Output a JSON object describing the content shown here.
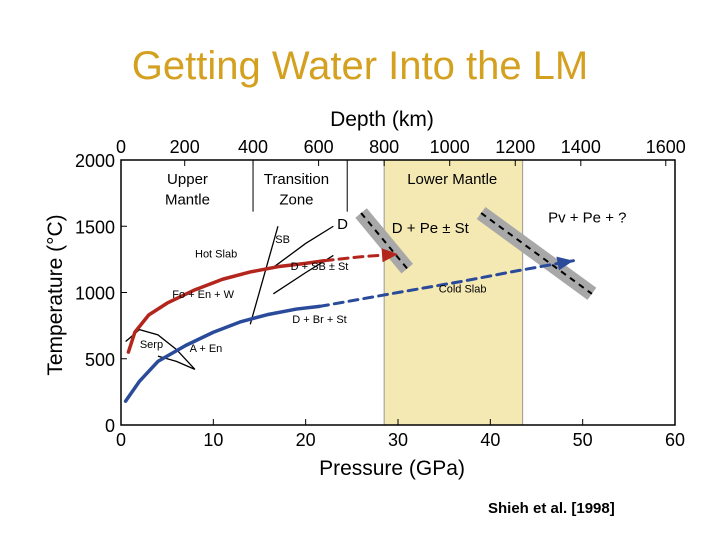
{
  "slide": {
    "title": "Getting Water Into the LM",
    "citation": "Shieh et al. [1998]"
  },
  "colors": {
    "title": "#D4A020",
    "hot_slab": "#B3261E",
    "cold_slab": "#2A4A9A",
    "lower_mantle_band": "#F5E9B3",
    "gray_band": "#A8A8A8"
  },
  "chart_data": {
    "type": "line",
    "title": "",
    "xlabel": "Pressure (GPa)",
    "ylabel": "Temperature (°C)",
    "top_axis_label": "Depth (km)",
    "xlim": [
      0,
      60
    ],
    "ylim": [
      0,
      2000
    ],
    "x_ticks": [
      0,
      10,
      20,
      30,
      40,
      50,
      60
    ],
    "y_ticks": [
      0,
      500,
      1000,
      1500,
      2000
    ],
    "top_ticks_km": [
      0,
      200,
      400,
      600,
      800,
      1000,
      1200,
      1400,
      1600
    ],
    "top_ticks_gpa": [
      0,
      6.9,
      14.3,
      21.4,
      28.5,
      35.6,
      42.7,
      49.8,
      59.0
    ],
    "regions": [
      {
        "label": "Upper Mantle",
        "x_range": [
          0,
          14.3
        ]
      },
      {
        "label": "Transition Zone",
        "x_range": [
          14.3,
          24.5
        ]
      },
      {
        "label": "Lower Mantle",
        "x_range": [
          24.5,
          60
        ]
      }
    ],
    "region_dividers": [
      14.3,
      24.5
    ],
    "highlight_band": {
      "x_range": [
        28.5,
        43.5
      ]
    },
    "series": [
      {
        "name": "Hot Slab",
        "style": "solid",
        "points": [
          [
            0.8,
            550
          ],
          [
            1.5,
            700
          ],
          [
            3,
            830
          ],
          [
            5,
            920
          ],
          [
            8,
            1020
          ],
          [
            11,
            1100
          ],
          [
            14,
            1155
          ],
          [
            17,
            1195
          ],
          [
            20,
            1220
          ],
          [
            22,
            1240
          ]
        ]
      },
      {
        "name": "",
        "style": "dashed",
        "points": [
          [
            22,
            1240
          ],
          [
            26,
            1270
          ],
          [
            30,
            1290
          ]
        ]
      },
      {
        "name": "Cold Slab",
        "style": "solid",
        "points": [
          [
            0.5,
            180
          ],
          [
            2,
            330
          ],
          [
            4,
            480
          ],
          [
            7,
            600
          ],
          [
            10,
            700
          ],
          [
            13,
            780
          ],
          [
            16,
            835
          ],
          [
            19,
            875
          ],
          [
            21.5,
            895
          ]
        ]
      },
      {
        "name": "",
        "style": "dashed",
        "points": [
          [
            21.5,
            895
          ],
          [
            30,
            1000
          ],
          [
            37,
            1085
          ],
          [
            43,
            1165
          ],
          [
            49,
            1240
          ]
        ]
      }
    ],
    "phase_boundaries": [
      {
        "points": [
          [
            0.5,
            630
          ],
          [
            2,
            720
          ],
          [
            4,
            680
          ],
          [
            6,
            570
          ],
          [
            8,
            420
          ]
        ]
      },
      {
        "points": [
          [
            4,
            520
          ],
          [
            6,
            480
          ],
          [
            8,
            420
          ]
        ]
      },
      {
        "points": [
          [
            14,
            760
          ],
          [
            17,
            1500
          ]
        ]
      },
      {
        "points": [
          [
            16.5,
            990
          ],
          [
            20,
            1150
          ],
          [
            23,
            1280
          ]
        ]
      },
      {
        "points": [
          [
            16.5,
            1190
          ],
          [
            20,
            1370
          ],
          [
            23,
            1500
          ]
        ]
      }
    ],
    "gray_bands": [
      {
        "points": [
          [
            26,
            1600
          ],
          [
            31,
            1180
          ]
        ]
      },
      {
        "points": [
          [
            39,
            1600
          ],
          [
            51,
            990
          ]
        ]
      }
    ],
    "annotations": [
      {
        "text": "Upper",
        "x": 7.2,
        "y": 1820
      },
      {
        "text": "Mantle",
        "x": 7.2,
        "y": 1665
      },
      {
        "text": "Transition",
        "x": 19,
        "y": 1820
      },
      {
        "text": "Zone",
        "x": 19,
        "y": 1665
      },
      {
        "text": "Lower Mantle",
        "x": 31,
        "y": 1820
      },
      {
        "text": "Pv + Pe + ?",
        "x": 50.5,
        "y": 1530
      },
      {
        "text": "D + Pe ± St",
        "x": 33.5,
        "y": 1450
      },
      {
        "text": "D",
        "x": 24,
        "y": 1480
      },
      {
        "text": "SB",
        "x": 17.5,
        "y": 1375
      },
      {
        "text": "Hot Slab",
        "x": 10.3,
        "y": 1265
      },
      {
        "text": "D + SB ± St",
        "x": 21.5,
        "y": 1170
      },
      {
        "text": "Fo + En + W",
        "x": 8.9,
        "y": 960
      },
      {
        "text": "Cold Slab",
        "x": 37,
        "y": 1000
      },
      {
        "text": "D + Br + St",
        "x": 21.5,
        "y": 770
      },
      {
        "text": "Serp",
        "x": 3.3,
        "y": 580
      },
      {
        "text": "A + En",
        "x": 9.2,
        "y": 550
      }
    ]
  }
}
